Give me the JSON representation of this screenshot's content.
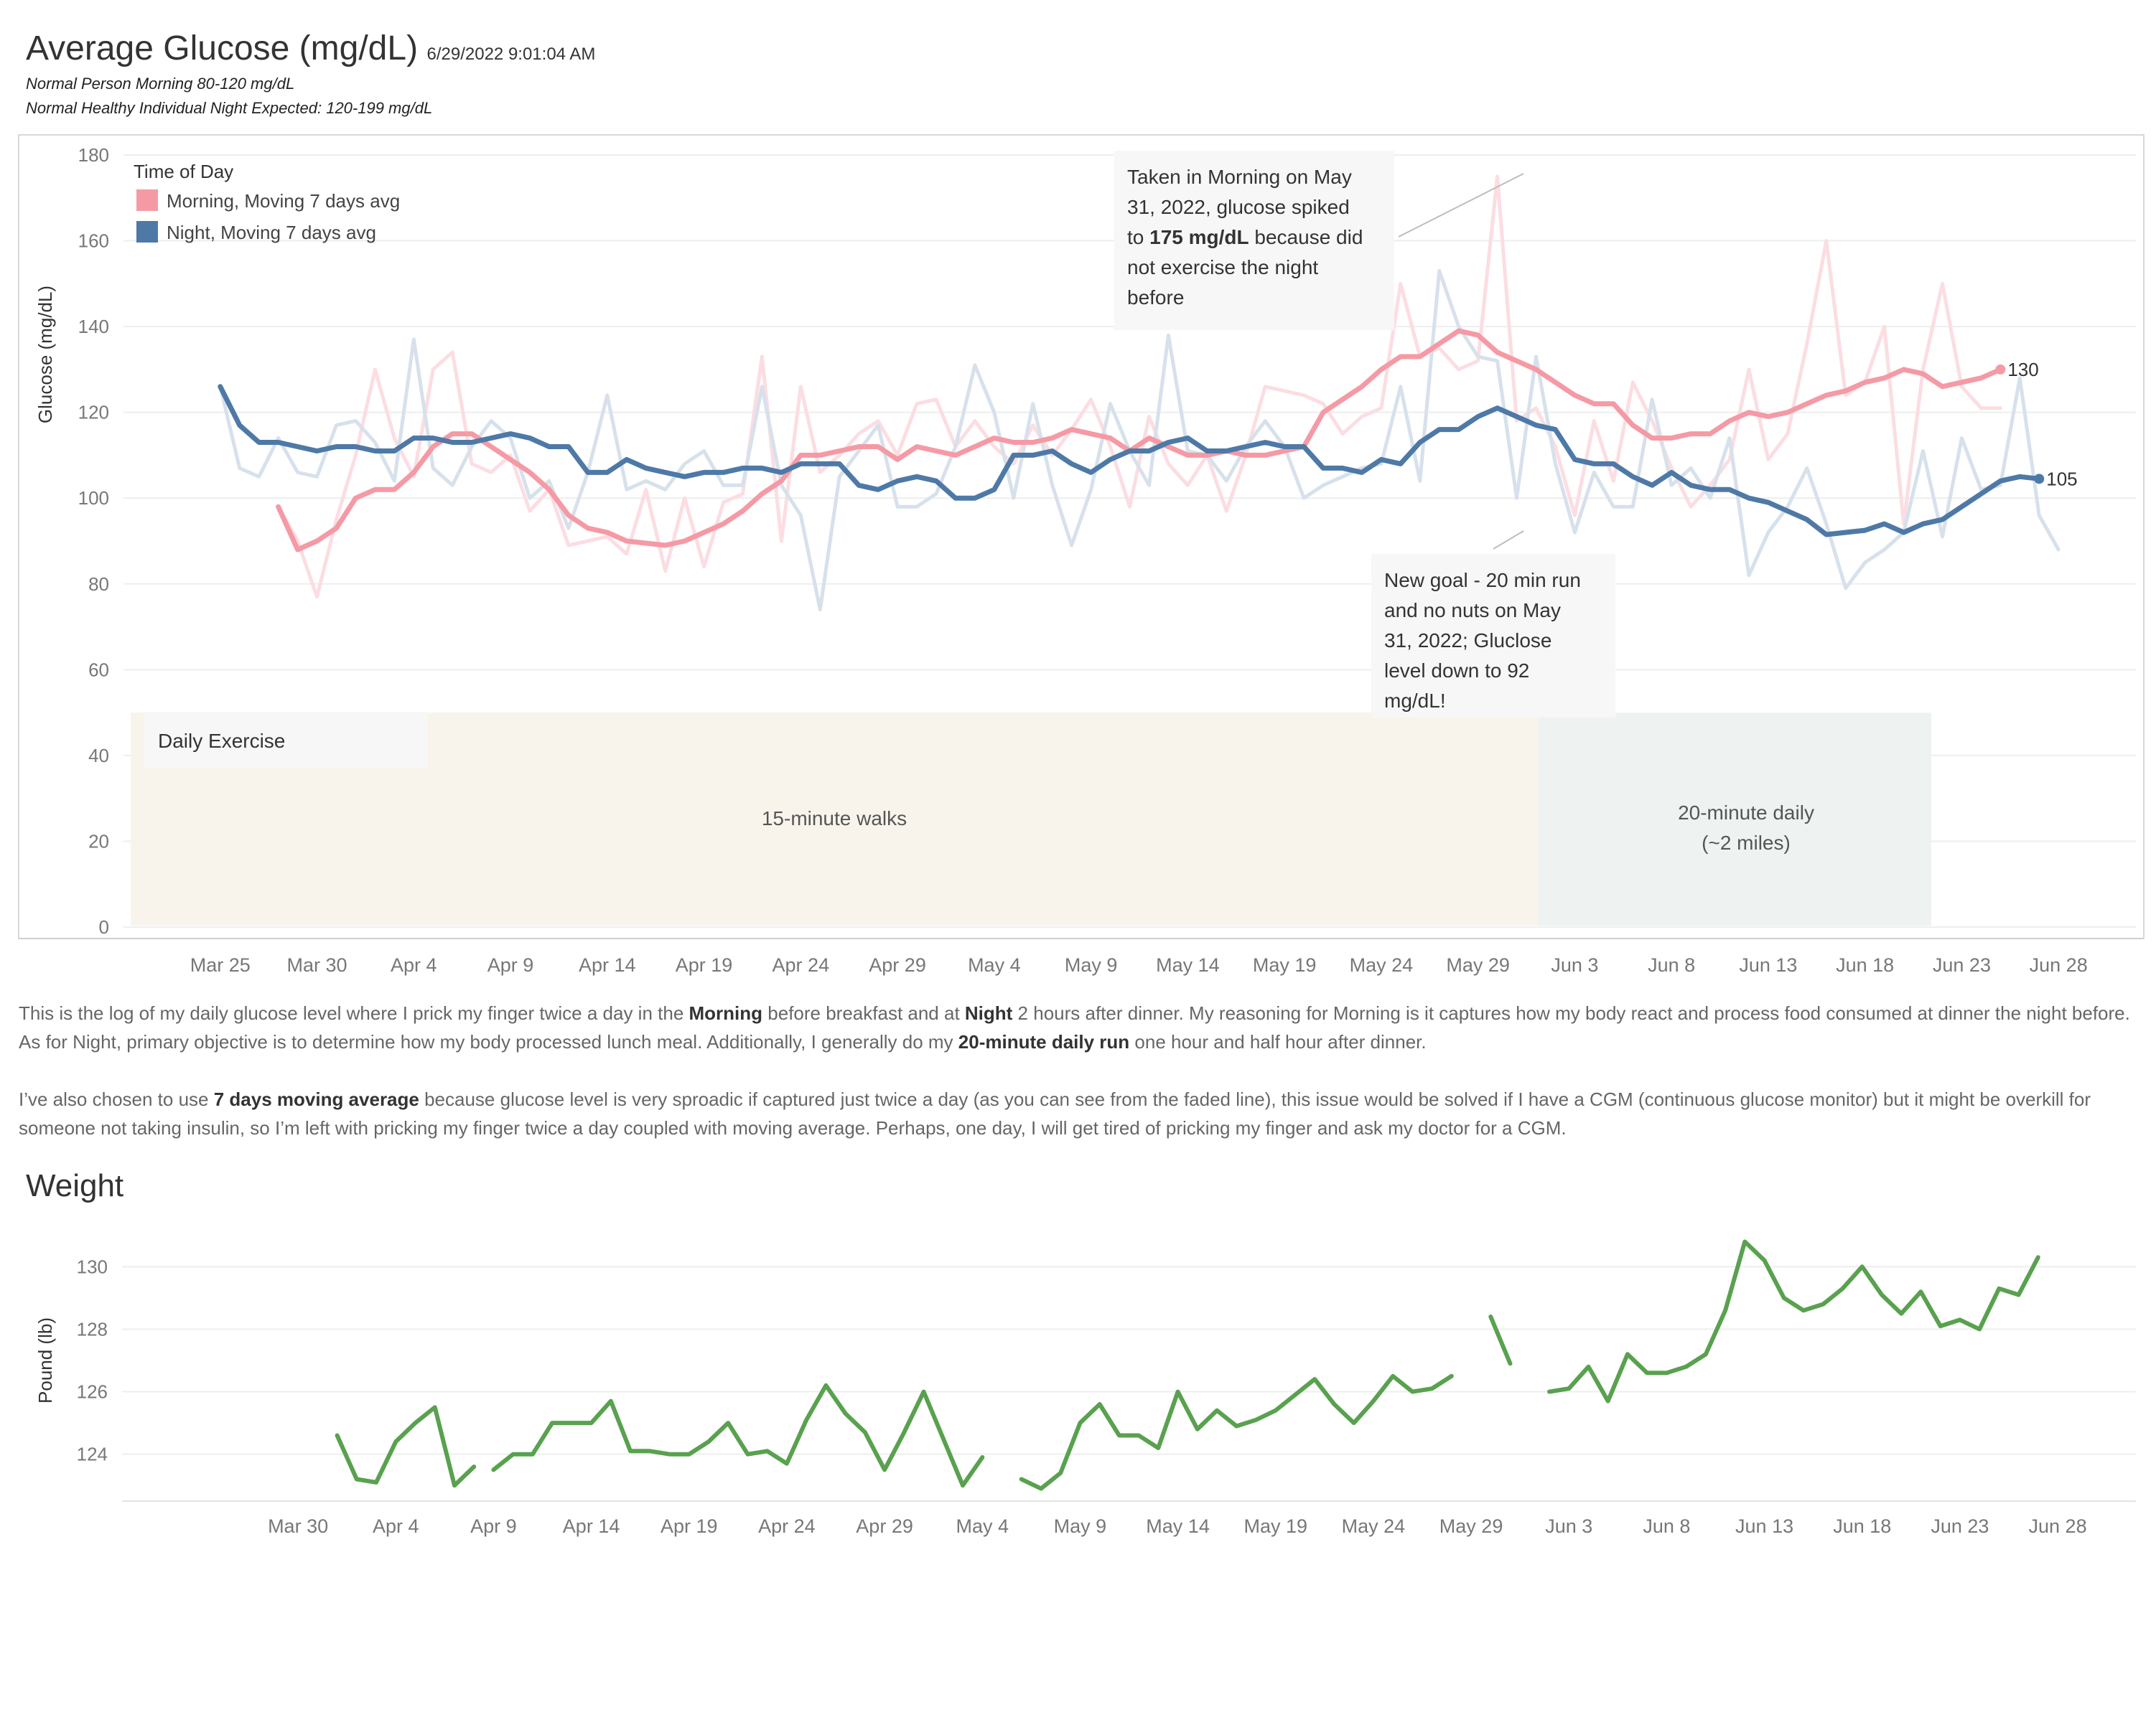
{
  "header": {
    "title": "Average Glucose (mg/dL)",
    "timestamp": "6/29/2022 9:01:04 AM",
    "note_morning": "Normal Person Morning 80-120 mg/dL",
    "note_night": "Normal Healthy Individual Night Expected: 120-199 mg/dL"
  },
  "description": {
    "p1": [
      {
        "t": "This is the log of my daily glucose level where I prick my finger twice a day in the ",
        "b": false
      },
      {
        "t": "Morning",
        "b": true
      },
      {
        "t": " before breakfast and at ",
        "b": false
      },
      {
        "t": "Night",
        "b": true
      },
      {
        "t": " 2 hours after dinner. My reasoning for Morning is it captures how my body react and process food consumed at dinner the night before. As for Night, primary objective is to determine how my body processed lunch meal. Additionally, I generally do my ",
        "b": false
      },
      {
        "t": "20-minute daily run",
        "b": true
      },
      {
        "t": " one hour and half hour after dinner.",
        "b": false
      }
    ],
    "p2": [
      {
        "t": "I’ve also chosen to use ",
        "b": false
      },
      {
        "t": "7 days moving average",
        "b": true
      },
      {
        "t": " because glucose level is very sproadic if captured just twice a day (as you can see from the faded line), this issue would be solved if I have a CGM (continuous glucose monitor) but it might be overkill for someone not taking insulin, so I’m left with pricking my finger twice a day coupled with moving average. Perhaps, one day, I will get tired of pricking my finger and ask my doctor for a CGM.",
        "b": false
      }
    ]
  },
  "weight_title": "Weight",
  "colors": {
    "morning": "#f59aa5",
    "morning_faded": "#fbdde2",
    "night": "#4e79a7",
    "night_faded": "#d7e1ec",
    "weight": "#59a14f",
    "walk_band": "#f8f4ec",
    "run_band": "#eef3f1"
  },
  "chart_data": [
    {
      "type": "line",
      "ylabel": "Glucose (mg/dL)",
      "ylim": [
        0,
        180
      ],
      "yticks": [
        0,
        20,
        40,
        60,
        80,
        100,
        120,
        140,
        160,
        180
      ],
      "x_start": "2022-03-25",
      "x_end": "2022-06-28",
      "xticks": [
        {
          "label": "Mar 25",
          "date": "2022-03-25"
        },
        {
          "label": "Mar 30",
          "date": "2022-03-30"
        },
        {
          "label": "Apr 4",
          "date": "2022-04-04"
        },
        {
          "label": "Apr 9",
          "date": "2022-04-09"
        },
        {
          "label": "Apr 14",
          "date": "2022-04-14"
        },
        {
          "label": "Apr 19",
          "date": "2022-04-19"
        },
        {
          "label": "Apr 24",
          "date": "2022-04-24"
        },
        {
          "label": "Apr 29",
          "date": "2022-04-29"
        },
        {
          "label": "May 4",
          "date": "2022-05-04"
        },
        {
          "label": "May 9",
          "date": "2022-05-09"
        },
        {
          "label": "May 14",
          "date": "2022-05-14"
        },
        {
          "label": "May 19",
          "date": "2022-05-19"
        },
        {
          "label": "May 24",
          "date": "2022-05-24"
        },
        {
          "label": "May 29",
          "date": "2022-05-29"
        },
        {
          "label": "Jun 3",
          "date": "2022-06-03"
        },
        {
          "label": "Jun 8",
          "date": "2022-06-08"
        },
        {
          "label": "Jun 13",
          "date": "2022-06-13"
        },
        {
          "label": "Jun 18",
          "date": "2022-06-18"
        },
        {
          "label": "Jun 23",
          "date": "2022-06-23"
        },
        {
          "label": "Jun 28",
          "date": "2022-06-28"
        }
      ],
      "grid": true,
      "legend_title": "Time of Day",
      "legend_position": "top-left",
      "series": [
        {
          "name": "Morning, Moving 7 days avg",
          "role": "avg",
          "color_key": "morning",
          "start": "2022-03-28",
          "end_label": "130",
          "values": [
            98,
            88,
            90,
            93,
            100,
            102,
            102,
            106,
            112,
            115,
            115,
            112,
            109,
            106,
            102,
            96,
            93,
            92,
            90,
            89.5,
            89,
            90,
            92,
            94,
            97,
            101,
            104,
            110,
            110,
            111,
            112,
            112,
            109,
            112,
            111,
            110,
            112,
            114,
            113,
            113,
            114,
            116,
            115,
            114,
            111,
            114,
            112,
            110,
            110,
            111,
            110,
            110,
            111,
            112,
            120,
            123,
            126,
            130,
            133,
            133,
            136,
            139,
            138,
            134,
            132,
            130,
            127,
            124,
            122,
            122,
            117,
            114,
            114,
            115,
            115,
            118,
            120,
            119,
            120,
            122,
            124,
            125,
            127,
            128,
            130,
            129,
            126,
            127,
            128,
            130
          ]
        },
        {
          "name": "Morning (daily)",
          "role": "raw",
          "color_key": "morning_faded",
          "start": "2022-03-28",
          "values": [
            98,
            90,
            77,
            95,
            110,
            130,
            114,
            105,
            130,
            134,
            108,
            106,
            110,
            97,
            102,
            89,
            90,
            91,
            87,
            102,
            83,
            100,
            84,
            99,
            101,
            133,
            90,
            126,
            106,
            110,
            115,
            118,
            110,
            122,
            123,
            112,
            118,
            112,
            108,
            117,
            110,
            116,
            123,
            112,
            98,
            119,
            108,
            103,
            110,
            97,
            110,
            126,
            125,
            124,
            122,
            115,
            119,
            121,
            150,
            133,
            135,
            130,
            132,
            175,
            118,
            121,
            112,
            96,
            118,
            104,
            127,
            118,
            107,
            98,
            103,
            109,
            130,
            109,
            115,
            136,
            160,
            124,
            127,
            140,
            94,
            130,
            150,
            126,
            121,
            121
          ]
        },
        {
          "name": "Night, Moving 7 days avg",
          "role": "avg",
          "color_key": "night",
          "start": "2022-03-25",
          "end_label": "105",
          "values": [
            126,
            117,
            113,
            113,
            112,
            111,
            112,
            112,
            111,
            111,
            114,
            114,
            113,
            113,
            114,
            115,
            114,
            112,
            112,
            106,
            106,
            109,
            107,
            106,
            105,
            106,
            106,
            107,
            107,
            106,
            108,
            108,
            108,
            103,
            102,
            104,
            105,
            104,
            100,
            100,
            102,
            110,
            110,
            111,
            108,
            106,
            109,
            111,
            111,
            113,
            114,
            111,
            111,
            112,
            113,
            112,
            112,
            107,
            107,
            106,
            109,
            108,
            113,
            116,
            116,
            119,
            121,
            119,
            117,
            116,
            109,
            108,
            108,
            105,
            103,
            106,
            103,
            102,
            102,
            100,
            99,
            97,
            95,
            91.5,
            92,
            92.5,
            94,
            92,
            94,
            95,
            98,
            101,
            104,
            105,
            104.5
          ]
        },
        {
          "name": "Night (daily)",
          "role": "raw",
          "color_key": "night_faded",
          "start": "2022-03-25",
          "values": [
            126,
            107,
            105,
            114,
            106,
            105,
            117,
            118,
            113,
            104,
            137,
            107,
            103,
            112,
            118,
            114,
            100,
            104,
            93,
            106,
            124,
            102,
            104,
            102,
            108,
            111,
            103,
            103,
            126,
            103,
            96,
            74,
            105,
            111,
            117,
            98,
            98,
            101,
            112,
            131,
            120,
            100,
            122,
            103,
            89,
            102,
            122,
            111,
            103,
            138,
            111,
            110,
            104,
            112,
            118,
            112,
            100,
            103,
            105,
            107,
            108,
            126,
            104,
            153,
            140,
            133,
            132,
            100,
            133,
            108,
            92,
            106,
            98,
            98,
            123,
            103,
            107,
            100,
            114,
            82,
            92,
            98,
            107,
            94,
            79,
            85,
            88,
            92,
            111,
            91,
            114,
            102,
            103,
            128,
            96,
            88
          ]
        }
      ],
      "bands": [
        {
          "label": "15-minute walks",
          "start": "2022-03-21",
          "end": "2022-06-01",
          "color_key": "walk_band"
        },
        {
          "label": "20-minute daily (~2 miles)",
          "start": "2022-06-01",
          "end": "2022-06-21",
          "color_key": "run_band"
        }
      ],
      "band_ylim": [
        0,
        50
      ],
      "band_title": "Daily Exercise",
      "annotations": [
        {
          "id": "spike",
          "lines": [
            "Taken in Morning on May",
            "31, 2022, glucose spiked",
            "to [b]175 mg/dL[/b] because did",
            "not exercise the night",
            "before"
          ],
          "target_date": "2022-05-31",
          "target_value": 175
        },
        {
          "id": "goal",
          "lines": [
            "New goal - 20 min run",
            "and no nuts on May",
            "31, 2022; Gluclose",
            "level down to 92",
            "mg/dL!"
          ],
          "target_date": "2022-06-01",
          "target_value": 92
        }
      ]
    },
    {
      "type": "line",
      "title": "Weight",
      "ylabel": "Pound (lb)",
      "ylim": [
        122.5,
        131.5
      ],
      "yticks": [
        124,
        126,
        128,
        130
      ],
      "x_start": "2022-03-25",
      "x_end": "2022-06-30",
      "xticks": [
        {
          "label": "Mar 30",
          "date": "2022-03-30"
        },
        {
          "label": "Apr 4",
          "date": "2022-04-04"
        },
        {
          "label": "Apr 9",
          "date": "2022-04-09"
        },
        {
          "label": "Apr 14",
          "date": "2022-04-14"
        },
        {
          "label": "Apr 19",
          "date": "2022-04-19"
        },
        {
          "label": "Apr 24",
          "date": "2022-04-24"
        },
        {
          "label": "Apr 29",
          "date": "2022-04-29"
        },
        {
          "label": "May 4",
          "date": "2022-05-04"
        },
        {
          "label": "May 9",
          "date": "2022-05-09"
        },
        {
          "label": "May 14",
          "date": "2022-05-14"
        },
        {
          "label": "May 19",
          "date": "2022-05-19"
        },
        {
          "label": "May 24",
          "date": "2022-05-24"
        },
        {
          "label": "May 29",
          "date": "2022-05-29"
        },
        {
          "label": "Jun 3",
          "date": "2022-06-03"
        },
        {
          "label": "Jun 8",
          "date": "2022-06-08"
        },
        {
          "label": "Jun 13",
          "date": "2022-06-13"
        },
        {
          "label": "Jun 18",
          "date": "2022-06-18"
        },
        {
          "label": "Jun 23",
          "date": "2022-06-23"
        },
        {
          "label": "Jun 28",
          "date": "2022-06-28"
        }
      ],
      "grid": true,
      "series": [
        {
          "role": "weight",
          "color_key": "weight",
          "segments": [
            {
              "start": "2022-04-01",
              "values": [
                124.6,
                123.2,
                123.1,
                124.4,
                125.0,
                125.5,
                123.0,
                123.6
              ]
            },
            {
              "start": "2022-04-09",
              "values": [
                123.5,
                124.0,
                124.0,
                125.0,
                125.0,
                125.0,
                125.7,
                124.1,
                124.1,
                124.0,
                124.0,
                124.4,
                125.0,
                124.0,
                124.1,
                123.7,
                125.1,
                126.2,
                125.3,
                124.7,
                123.5,
                124.7,
                126.0,
                124.5,
                123.0,
                123.9
              ]
            },
            {
              "start": "2022-05-06",
              "values": [
                123.2,
                122.9,
                123.4,
                125.0,
                125.6,
                124.6,
                124.6,
                124.2,
                126.0,
                124.8,
                125.4,
                124.9,
                125.1,
                125.4,
                125.9,
                126.4,
                125.6,
                125.0,
                125.7,
                126.5,
                126.0,
                126.1,
                126.5
              ]
            },
            {
              "start": "2022-05-30",
              "values": [
                128.4,
                126.9
              ]
            },
            {
              "start": "2022-06-02",
              "values": [
                126.0,
                126.1,
                126.8,
                125.7,
                127.2,
                126.6,
                126.6,
                126.8,
                127.2,
                128.6,
                130.8,
                130.2,
                129.0,
                128.6,
                128.8,
                129.3,
                130.0,
                129.1,
                128.5,
                129.2,
                128.1,
                128.3,
                128.0,
                129.3,
                129.1,
                130.3
              ]
            }
          ]
        }
      ]
    }
  ]
}
